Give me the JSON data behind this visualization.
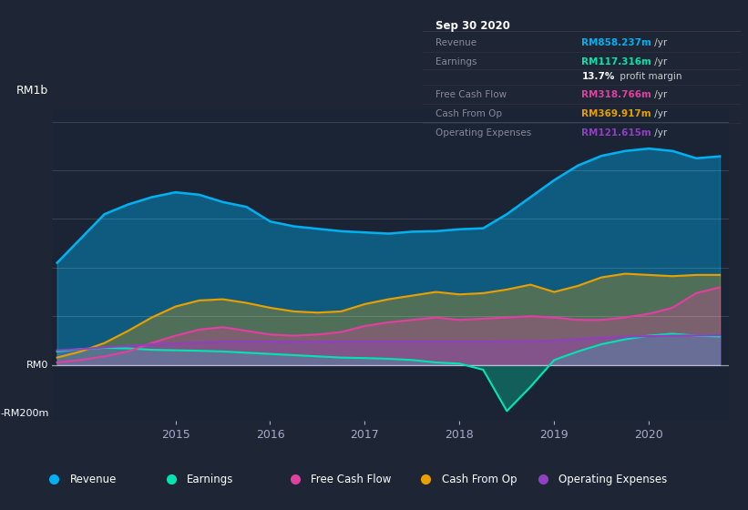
{
  "bg_color": "#1e2535",
  "plot_bg_color": "#1a2435",
  "legend_bg": "#252f40",
  "infobox_bg": "#0a0c10",
  "title": "Sep 30 2020",
  "ylabel_top": "RM1b",
  "ylabel_zero": "RM0",
  "ylabel_bottom": "-RM200m",
  "ylim": [
    -230,
    1050
  ],
  "xlim_start": 2013.7,
  "xlim_end": 2020.85,
  "legend": [
    {
      "label": "Revenue",
      "color": "#00b0f0"
    },
    {
      "label": "Earnings",
      "color": "#00e5b0"
    },
    {
      "label": "Free Cash Flow",
      "color": "#e040a0"
    },
    {
      "label": "Cash From Op",
      "color": "#e8a000"
    },
    {
      "label": "Operating Expenses",
      "color": "#9040c0"
    }
  ],
  "series": {
    "x": [
      2013.75,
      2014.0,
      2014.25,
      2014.5,
      2014.75,
      2015.0,
      2015.25,
      2015.5,
      2015.75,
      2016.0,
      2016.25,
      2016.5,
      2016.75,
      2017.0,
      2017.25,
      2017.5,
      2017.75,
      2018.0,
      2018.25,
      2018.5,
      2018.75,
      2019.0,
      2019.25,
      2019.5,
      2019.75,
      2020.0,
      2020.25,
      2020.5,
      2020.75
    ],
    "revenue": [
      420,
      520,
      620,
      660,
      690,
      710,
      700,
      670,
      650,
      590,
      570,
      560,
      550,
      545,
      540,
      548,
      550,
      558,
      562,
      620,
      690,
      760,
      820,
      860,
      880,
      890,
      880,
      850,
      858
    ],
    "earnings": [
      55,
      65,
      70,
      68,
      62,
      60,
      58,
      55,
      50,
      45,
      40,
      35,
      30,
      28,
      25,
      20,
      10,
      5,
      -20,
      -190,
      -90,
      20,
      55,
      85,
      105,
      120,
      128,
      120,
      117
    ],
    "free_cash_flow": [
      10,
      20,
      35,
      55,
      90,
      120,
      145,
      155,
      140,
      125,
      120,
      125,
      135,
      160,
      175,
      185,
      195,
      185,
      190,
      195,
      200,
      195,
      185,
      185,
      195,
      210,
      235,
      295,
      319
    ],
    "cash_from_op": [
      30,
      55,
      90,
      140,
      195,
      240,
      265,
      270,
      255,
      235,
      220,
      215,
      220,
      250,
      270,
      285,
      300,
      290,
      295,
      310,
      330,
      300,
      325,
      360,
      375,
      370,
      365,
      370,
      370
    ],
    "operating_expenses": [
      60,
      65,
      72,
      78,
      84,
      88,
      92,
      96,
      96,
      96,
      95,
      95,
      96,
      96,
      96,
      96,
      96,
      96,
      96,
      97,
      97,
      100,
      106,
      112,
      116,
      118,
      120,
      121,
      122
    ]
  }
}
